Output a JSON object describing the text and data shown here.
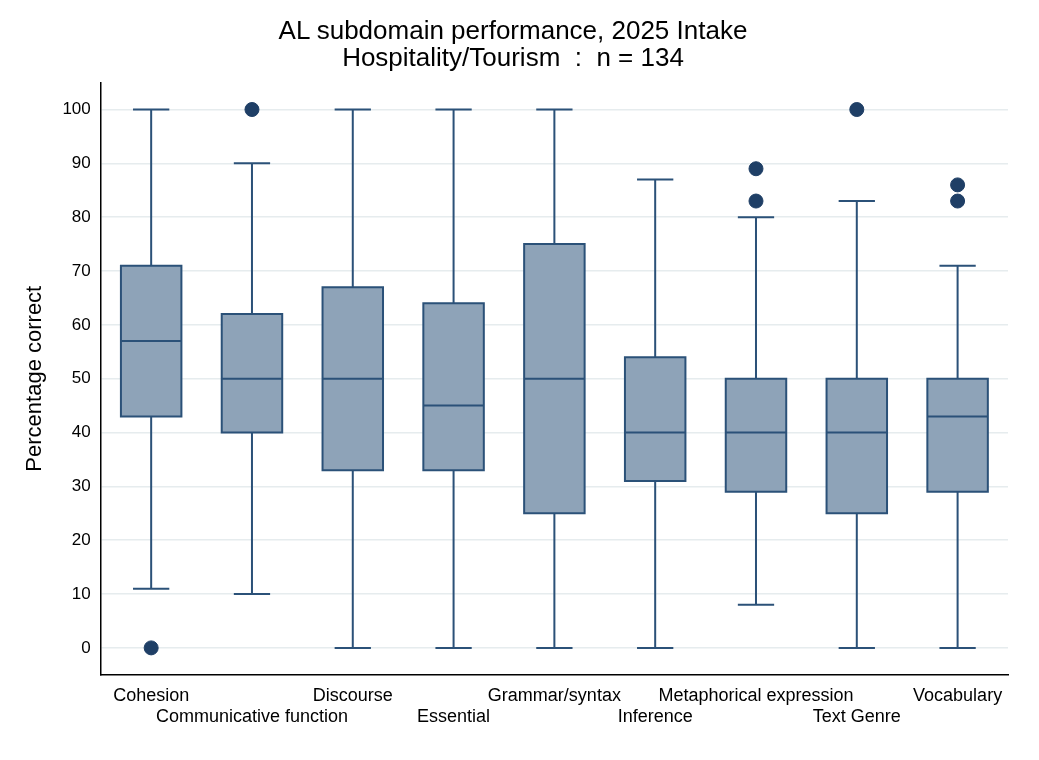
{
  "chart_data": {
    "type": "box",
    "title": "AL subdomain performance, 2025 Intake",
    "subtitle": "Hospitality/Tourism  :  n = 134",
    "ylabel": "Percentage correct",
    "categories": [
      "Cohesion",
      "Communicative function",
      "Discourse",
      "Essential",
      "Grammar/syntax",
      "Inference",
      "Metaphorical expression",
      "Text Genre",
      "Vocabulary"
    ],
    "color": "#8ea3b8",
    "boxes": [
      {
        "low": 11,
        "q1": 43,
        "median": 57,
        "q3": 71,
        "high": 100,
        "outliers": [
          0
        ]
      },
      {
        "low": 10,
        "q1": 40,
        "median": 50,
        "q3": 62,
        "high": 90,
        "outliers": [
          100
        ]
      },
      {
        "low": 0,
        "q1": 33,
        "median": 50,
        "q3": 67,
        "high": 100
      },
      {
        "low": 0,
        "q1": 33,
        "median": 45,
        "q3": 64,
        "high": 100
      },
      {
        "low": 0,
        "q1": 25,
        "median": 50,
        "q3": 75,
        "high": 100
      },
      {
        "low": 0,
        "q1": 31,
        "median": 40,
        "q3": 54,
        "high": 87
      },
      {
        "low": 8,
        "q1": 29,
        "median": 40,
        "q3": 50,
        "high": 80,
        "outliers": [
          83,
          89
        ]
      },
      {
        "low": 0,
        "q1": 25,
        "median": 40,
        "q3": 50,
        "high": 83,
        "outliers": [
          100
        ]
      },
      {
        "low": 0,
        "q1": 29,
        "median": 43,
        "q3": 50,
        "high": 71,
        "outliers": [
          83,
          86
        ]
      }
    ],
    "ylim": [
      -5,
      105
    ],
    "yticks": [
      0,
      10,
      20,
      30,
      40,
      50,
      60,
      70,
      80,
      90,
      100
    ],
    "grid": "y",
    "legend": false
  }
}
